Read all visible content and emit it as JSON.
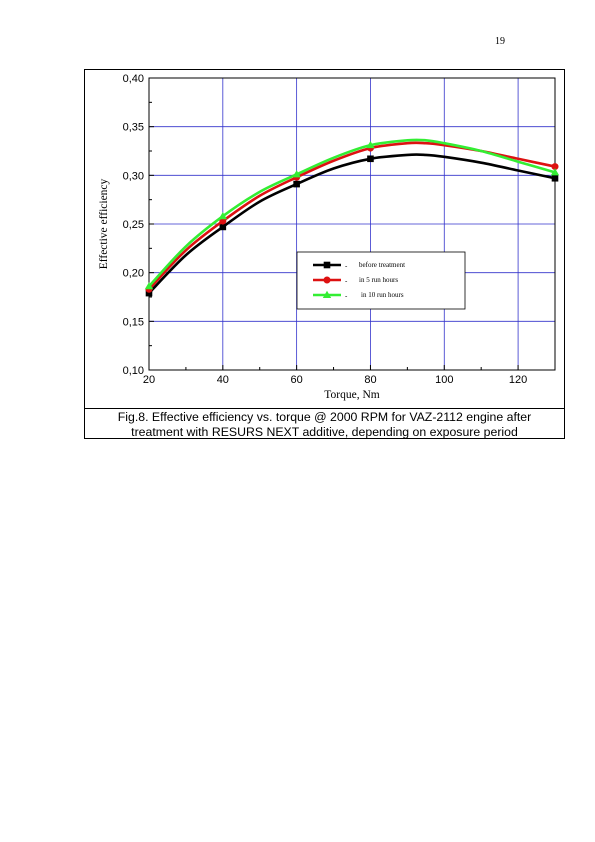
{
  "page": {
    "number": "19"
  },
  "caption": {
    "line1": "Fig.8. Effective efficiency vs. torque @ 2000 RPM for VAZ-2112 engine after",
    "line2": "treatment with RESURS NEXT additive, depending on exposure period"
  },
  "chart_data": {
    "type": "line",
    "title": "",
    "xlabel": "Torque, Nm",
    "ylabel": "Effective efficiency",
    "xlim": [
      20,
      130
    ],
    "ylim": [
      0.1,
      0.4
    ],
    "x_ticks": [
      20,
      40,
      60,
      80,
      100,
      120
    ],
    "x_tick_labels": [
      "20",
      "40",
      "60",
      "80",
      "100",
      "120"
    ],
    "y_ticks": [
      0.1,
      0.15,
      0.2,
      0.25,
      0.3,
      0.35,
      0.4
    ],
    "y_tick_labels": [
      "0,10",
      "0,15",
      "0,20",
      "0,25",
      "0,30",
      "0,35",
      "0,40"
    ],
    "grid": true,
    "legend_position": "center-right",
    "series": [
      {
        "name": "before treatment",
        "color": "#000000",
        "marker": "square",
        "markers_x": [
          20,
          40,
          60,
          80,
          130
        ],
        "markers_y": [
          0.179,
          0.247,
          0.291,
          0.317,
          0.297
        ],
        "curve_x": [
          20,
          30,
          40,
          50,
          60,
          70,
          80,
          90,
          95,
          100,
          110,
          120,
          130
        ],
        "curve_y": [
          0.179,
          0.218,
          0.247,
          0.273,
          0.291,
          0.307,
          0.317,
          0.321,
          0.321,
          0.319,
          0.313,
          0.305,
          0.297
        ]
      },
      {
        "name": "in 5 run hours",
        "color": "#dd1111",
        "marker": "circle",
        "markers_x": [
          20,
          40,
          60,
          80,
          130
        ],
        "markers_y": [
          0.183,
          0.253,
          0.298,
          0.328,
          0.309
        ],
        "curve_x": [
          20,
          30,
          40,
          50,
          60,
          70,
          80,
          90,
          95,
          100,
          110,
          120,
          130
        ],
        "curve_y": [
          0.183,
          0.223,
          0.253,
          0.279,
          0.298,
          0.315,
          0.328,
          0.333,
          0.333,
          0.331,
          0.325,
          0.317,
          0.309
        ]
      },
      {
        "name": "in 10 run hours",
        "color": "#33ee33",
        "marker": "triangle",
        "markers_x": [
          20,
          40,
          60,
          80,
          130
        ],
        "markers_y": [
          0.186,
          0.258,
          0.301,
          0.331,
          0.303
        ],
        "curve_x": [
          20,
          30,
          40,
          50,
          60,
          70,
          80,
          90,
          95,
          100,
          110,
          120,
          130
        ],
        "curve_y": [
          0.186,
          0.227,
          0.258,
          0.283,
          0.301,
          0.318,
          0.331,
          0.336,
          0.336,
          0.333,
          0.325,
          0.314,
          0.303
        ]
      }
    ]
  }
}
